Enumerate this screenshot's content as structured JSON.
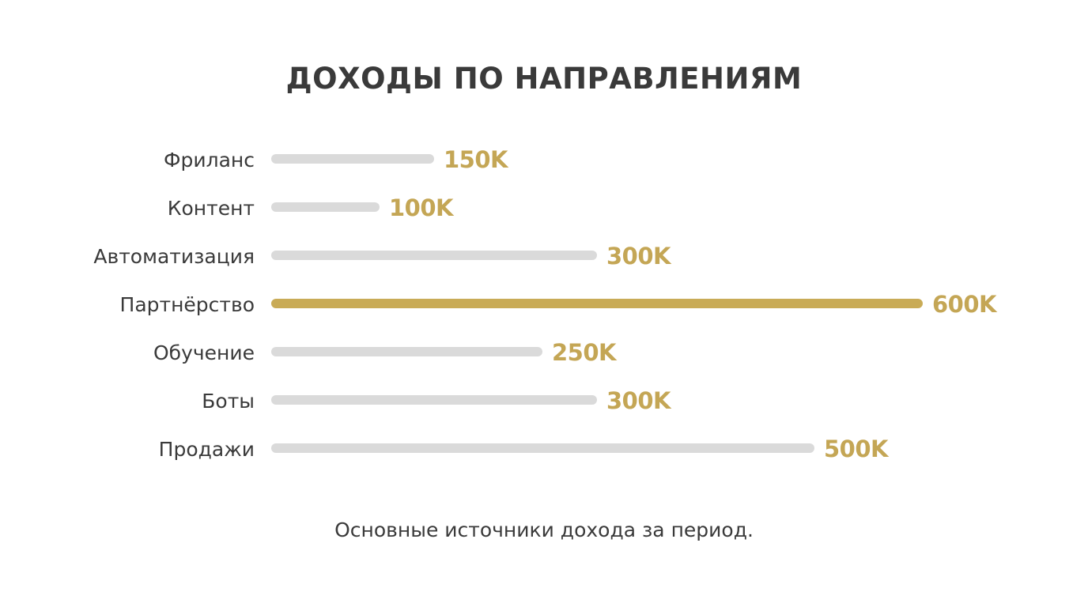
{
  "title": "ДОХОДЫ ПО НАПРАВЛЕНИЯМ",
  "caption": "Основные источники дохода за период.",
  "colors": {
    "bar_default": "#dadada",
    "bar_highlight": "#c9ab56",
    "value_text": "#c4a655",
    "text": "#3a3a3a",
    "background": "#ffffff"
  },
  "rows": [
    {
      "label": "Фриланс",
      "value_label": "150K",
      "value": 150,
      "highlight": false
    },
    {
      "label": "Контент",
      "value_label": "100K",
      "value": 100,
      "highlight": false
    },
    {
      "label": "Автоматизация",
      "value_label": "300K",
      "value": 300,
      "highlight": false
    },
    {
      "label": "Партнёрство",
      "value_label": "600K",
      "value": 600,
      "highlight": true
    },
    {
      "label": "Обучение",
      "value_label": "250K",
      "value": 250,
      "highlight": false
    },
    {
      "label": "Боты",
      "value_label": "300K",
      "value": 300,
      "highlight": false
    },
    {
      "label": "Продажи",
      "value_label": "500K",
      "value": 500,
      "highlight": false
    }
  ],
  "chart_data": {
    "type": "bar",
    "orientation": "horizontal",
    "title": "ДОХОДЫ ПО НАПРАВЛЕНИЯМ",
    "subtitle": "Основные источники дохода за период.",
    "categories": [
      "Фриланс",
      "Контент",
      "Автоматизация",
      "Партнёрство",
      "Обучение",
      "Боты",
      "Продажи"
    ],
    "values": [
      150,
      100,
      300,
      600,
      250,
      300,
      500
    ],
    "value_labels": [
      "150K",
      "100K",
      "300K",
      "600K",
      "250K",
      "300K",
      "500K"
    ],
    "highlighted_category": "Партнёрство",
    "xlabel": "",
    "ylabel": "",
    "xlim": [
      0,
      600
    ],
    "grid": false,
    "legend": null
  }
}
